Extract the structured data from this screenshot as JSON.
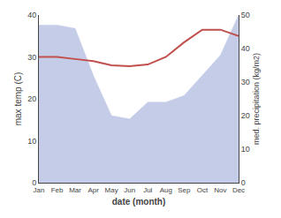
{
  "chart_data": {
    "type": "line",
    "categories": [
      "Jan",
      "Feb",
      "Mar",
      "Apr",
      "May",
      "Jun",
      "Jul",
      "Aug",
      "Sep",
      "Oct",
      "Nov",
      "Dec"
    ],
    "xlabel": "date (month)",
    "ylabel": "max temp (C)",
    "y2label": "med. precipitation (kg/m2)",
    "series": [
      {
        "type": "area",
        "axis": "y2",
        "color": "#c5cce8",
        "values": [
          47.0,
          47.0,
          46.0,
          32.0,
          20.0,
          19.0,
          24.0,
          24.0,
          26.0,
          32.0,
          38.0,
          50.0
        ]
      },
      {
        "type": "line",
        "color": "#c0504d",
        "values": [
          30.0,
          30.0,
          29.5,
          29.0,
          28.0,
          27.8,
          28.2,
          30.0,
          33.5,
          36.5,
          36.5,
          35.0
        ]
      }
    ],
    "ylim": [
      0,
      40
    ],
    "yticks": [
      0,
      10,
      20,
      30,
      40
    ],
    "y2lim": [
      0,
      50
    ],
    "y2ticks": [
      0,
      10,
      20,
      30,
      40,
      50
    ],
    "grid": false
  }
}
